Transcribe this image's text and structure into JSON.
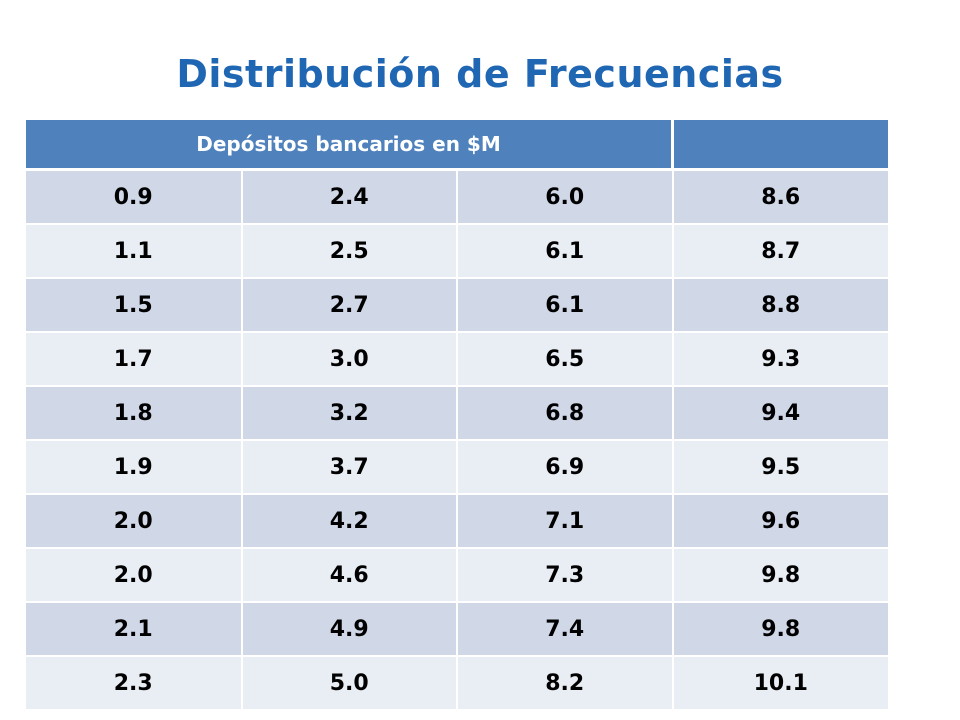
{
  "slide": {
    "title": "Distribución de Frecuencias"
  },
  "table": {
    "header": [
      "Depósitos bancarios en $M",
      ""
    ],
    "rows": [
      [
        "0.9",
        "2.4",
        "6.0",
        "8.6"
      ],
      [
        "1.1",
        "2.5",
        "6.1",
        "8.7"
      ],
      [
        "1.5",
        "2.7",
        "6.1",
        "8.8"
      ],
      [
        "1.7",
        "3.0",
        "6.5",
        "9.3"
      ],
      [
        "1.8",
        "3.2",
        "6.8",
        "9.4"
      ],
      [
        "1.9",
        "3.7",
        "6.9",
        "9.5"
      ],
      [
        "2.0",
        "4.2",
        "7.1",
        "9.6"
      ],
      [
        "2.0",
        "4.6",
        "7.3",
        "9.8"
      ],
      [
        "2.1",
        "4.9",
        "7.4",
        "9.8"
      ],
      [
        "2.3",
        "5.0",
        "8.2",
        "10.1"
      ]
    ]
  },
  "colors": {
    "title": "#1f66b3",
    "header_bg": "#4f81bd",
    "row_odd": "#d0d8e8",
    "row_even": "#e9edf4"
  }
}
